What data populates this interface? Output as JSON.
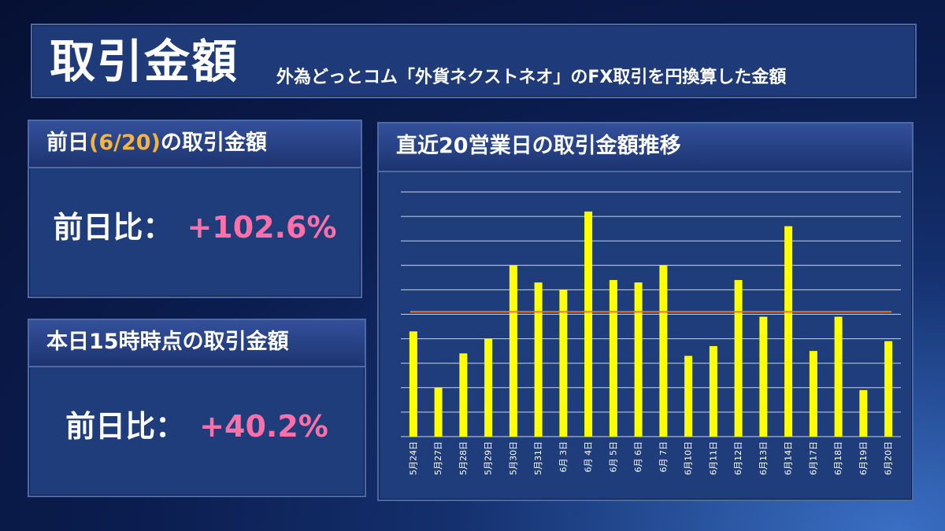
{
  "header": {
    "title": "取引金額",
    "subtitle": "外為どっとコム「外貨ネクストネオ」のFX取引を円換算した金額"
  },
  "card_prev": {
    "title_prefix": "前日",
    "title_highlight": "(6/20)",
    "title_suffix": "の取引金額",
    "ratio_label": "前日比：",
    "ratio_value": "+102.6%"
  },
  "card_today": {
    "title": "本日15時時点の取引金額",
    "ratio_label": "前日比：",
    "ratio_value": "+40.2%"
  },
  "chart_panel": {
    "title": "直近20営業日の取引金額推移"
  },
  "colors": {
    "bar": "#ffff00",
    "average_line": "#e07a35",
    "highlight": "#f5b43a",
    "positive": "#ff6fa8"
  },
  "chart_data": {
    "type": "bar",
    "title": "直近20営業日の取引金額推移",
    "categories": [
      "5月24日",
      "5月27日",
      "5月28日",
      "5月29日",
      "5月30日",
      "5月31日",
      "6月 3日",
      "6月 4日",
      "6月 5日",
      "6月 6日",
      "6月 7日",
      "6月10日",
      "6月11日",
      "6月12日",
      "6月13日",
      "6月14日",
      "6月17日",
      "6月18日",
      "6月19日",
      "6月20日"
    ],
    "values": [
      2.15,
      1.0,
      1.7,
      2.0,
      3.5,
      3.15,
      3.0,
      4.6,
      3.2,
      3.15,
      3.5,
      1.65,
      1.85,
      3.2,
      2.45,
      4.3,
      1.75,
      2.45,
      0.95,
      1.95
    ],
    "average": 2.55,
    "ylim": [
      0,
      5
    ],
    "y_gridlines": 10,
    "y_axis_labels_shown": false,
    "grid": true,
    "legend": "none"
  }
}
